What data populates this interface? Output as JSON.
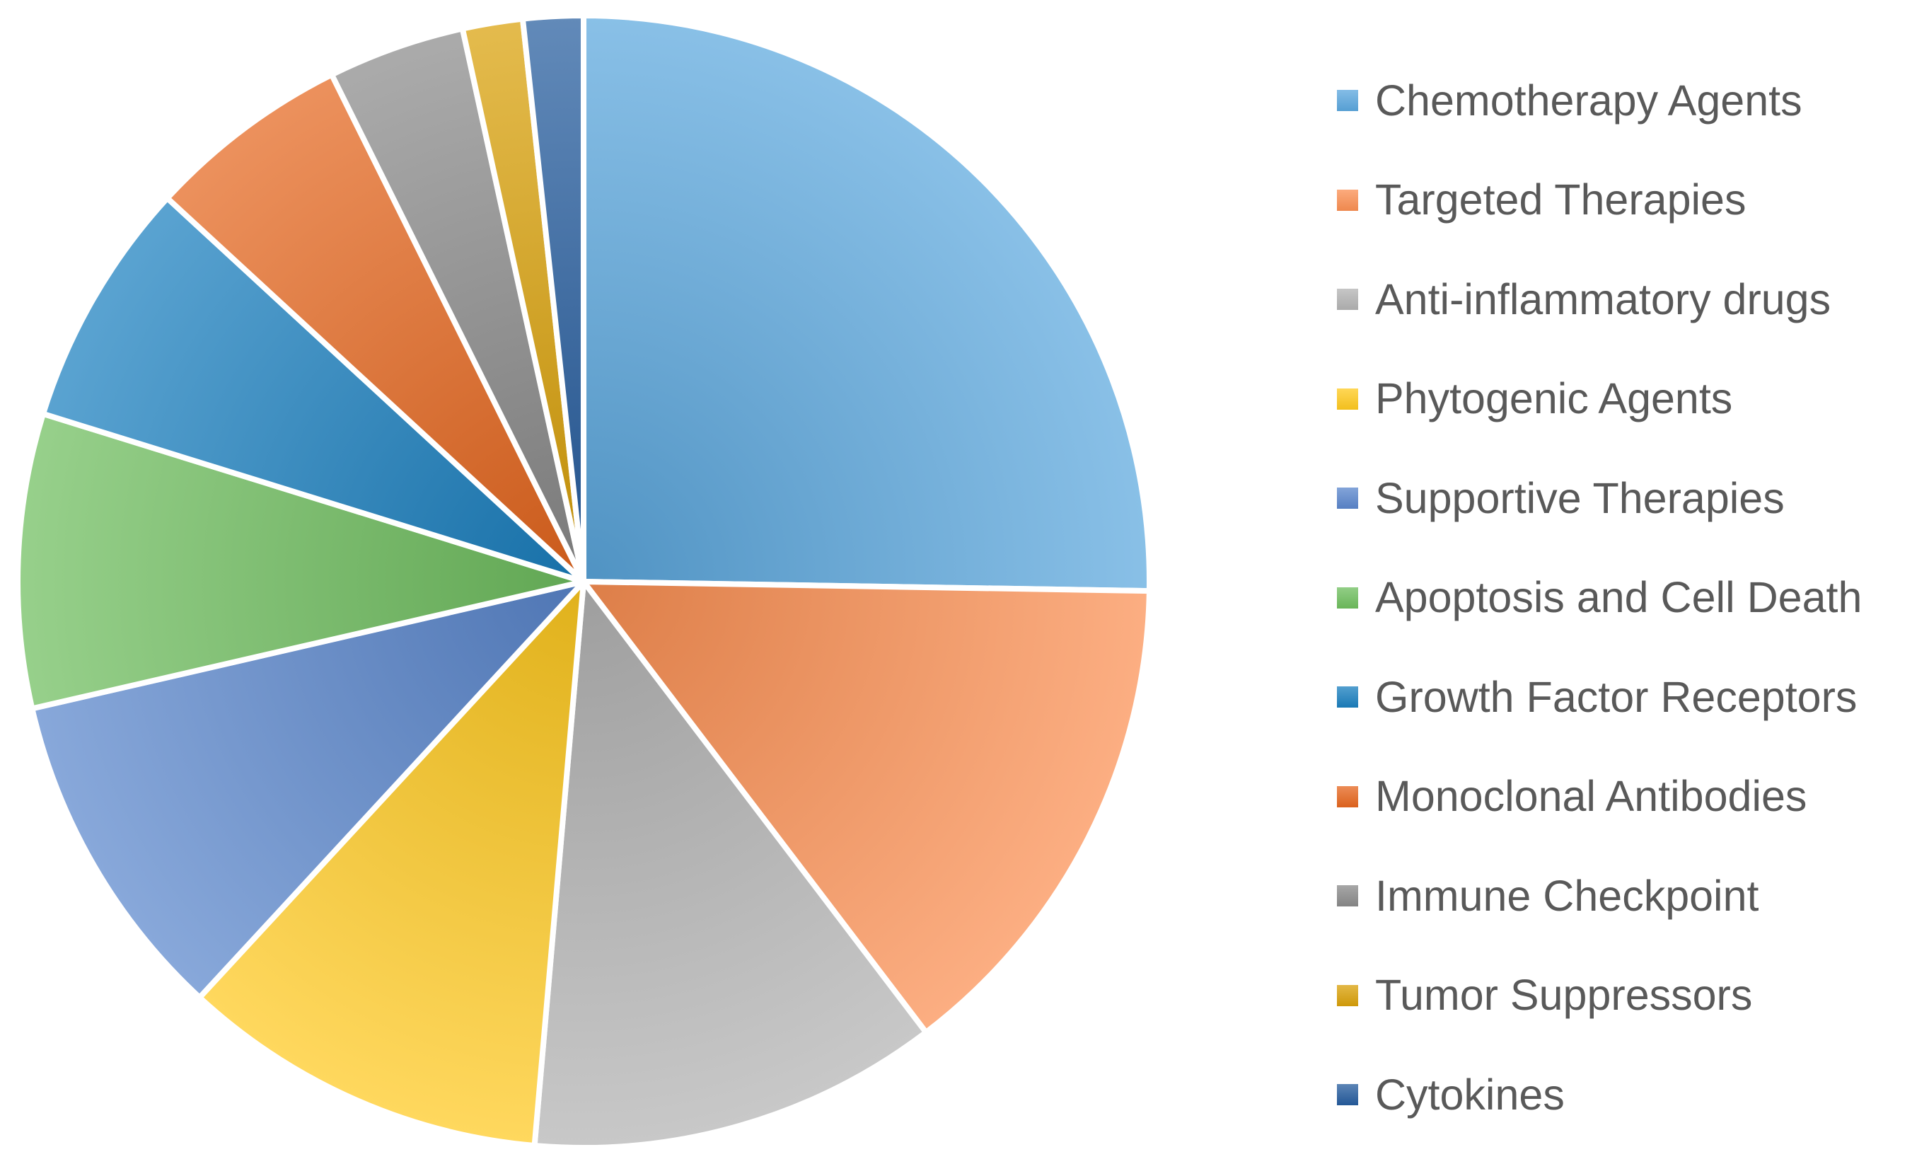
{
  "chart_data": {
    "type": "pie",
    "title": "",
    "categories": [
      "Chemotherapy Agents",
      "Targeted Therapies",
      "Anti-inflammatory drugs",
      "Phytogenic Agents",
      "Supportive Therapies",
      "Apoptosis and Cell Death",
      "Growth Factor Receptors",
      "Monoclonal Antibodies",
      "Immune Checkpoint",
      "Tumor Suppressors",
      "Cytokines"
    ],
    "values": [
      26.5,
      15.1,
      12.3,
      11.0,
      10.0,
      8.8,
      7.4,
      6.1,
      4.1,
      1.8,
      1.8
    ],
    "colors": [
      "#5BA7DE",
      "#FB8F52",
      "#B3B3B3",
      "#FFC91F",
      "#5A86CC",
      "#6EBE5E",
      "#1A7FBF",
      "#E5661E",
      "#8A8A8A",
      "#D9A008",
      "#255C9E"
    ],
    "legend_position": "right",
    "start_angle": "12 o'clock, clockwise"
  }
}
